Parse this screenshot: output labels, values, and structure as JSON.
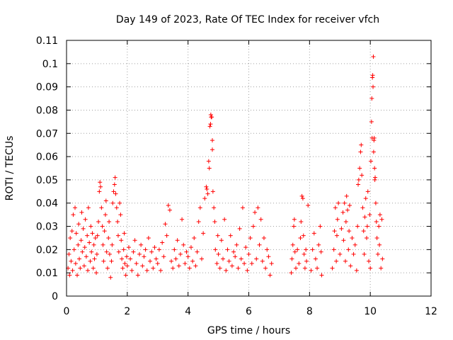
{
  "chart_data": {
    "type": "scatter",
    "title": "Day 149 of 2023, Rate Of TEC Index for receiver vfch",
    "xlabel": "GPS time / hours",
    "ylabel": "ROTI / TECUs",
    "xlim": [
      0,
      12
    ],
    "ylim": [
      0,
      0.11
    ],
    "xticks": [
      0,
      2,
      4,
      6,
      8,
      10,
      12
    ],
    "xtick_labels": [
      "0",
      "2",
      "4",
      "6",
      "8",
      "10",
      "12"
    ],
    "yticks": [
      0,
      0.01,
      0.02,
      0.03,
      0.04,
      0.05,
      0.06,
      0.07,
      0.08,
      0.09,
      0.1,
      0.11
    ],
    "ytick_labels": [
      "0",
      "0.01",
      "0.02",
      "0.03",
      "0.04",
      "0.05",
      "0.06",
      "0.07",
      "0.08",
      "0.09",
      "0.1",
      "0.11"
    ],
    "grid": true,
    "marker": "+",
    "color": "#ff0000",
    "series": [
      {
        "name": "ROTI",
        "points": [
          [
            0.05,
            0.012
          ],
          [
            0.08,
            0.018
          ],
          [
            0.1,
            0.009
          ],
          [
            0.12,
            0.025
          ],
          [
            0.15,
            0.015
          ],
          [
            0.18,
            0.028
          ],
          [
            0.2,
            0.011
          ],
          [
            0.22,
            0.035
          ],
          [
            0.25,
            0.02
          ],
          [
            0.28,
            0.038
          ],
          [
            0.3,
            0.014
          ],
          [
            0.32,
            0.027
          ],
          [
            0.35,
            0.009
          ],
          [
            0.38,
            0.022
          ],
          [
            0.4,
            0.031
          ],
          [
            0.42,
            0.016
          ],
          [
            0.45,
            0.012
          ],
          [
            0.48,
            0.024
          ],
          [
            0.5,
            0.036
          ],
          [
            0.52,
            0.019
          ],
          [
            0.55,
            0.029
          ],
          [
            0.58,
            0.013
          ],
          [
            0.6,
            0.021
          ],
          [
            0.62,
            0.033
          ],
          [
            0.65,
            0.017
          ],
          [
            0.68,
            0.026
          ],
          [
            0.7,
            0.011
          ],
          [
            0.72,
            0.038
          ],
          [
            0.75,
            0.023
          ],
          [
            0.78,
            0.015
          ],
          [
            0.8,
            0.03
          ],
          [
            0.82,
            0.019
          ],
          [
            0.85,
            0.027
          ],
          [
            0.88,
            0.012
          ],
          [
            0.9,
            0.022
          ],
          [
            0.92,
            0.016
          ],
          [
            0.95,
            0.025
          ],
          [
            0.98,
            0.01
          ],
          [
            1.0,
            0.018
          ],
          [
            1.02,
            0.026
          ],
          [
            1.05,
            0.032
          ],
          [
            1.08,
            0.045
          ],
          [
            1.1,
            0.049
          ],
          [
            1.12,
            0.047
          ],
          [
            1.15,
            0.038
          ],
          [
            1.18,
            0.03
          ],
          [
            1.2,
            0.022
          ],
          [
            1.22,
            0.015
          ],
          [
            1.25,
            0.028
          ],
          [
            1.28,
            0.035
          ],
          [
            1.3,
            0.041
          ],
          [
            1.32,
            0.019
          ],
          [
            1.35,
            0.012
          ],
          [
            1.38,
            0.025
          ],
          [
            1.4,
            0.032
          ],
          [
            1.42,
            0.018
          ],
          [
            1.45,
            0.008
          ],
          [
            1.48,
            0.015
          ],
          [
            1.5,
            0.022
          ],
          [
            1.52,
            0.04
          ],
          [
            1.55,
            0.045
          ],
          [
            1.58,
            0.048
          ],
          [
            1.6,
            0.051
          ],
          [
            1.62,
            0.044
          ],
          [
            1.65,
            0.038
          ],
          [
            1.68,
            0.032
          ],
          [
            1.7,
            0.026
          ],
          [
            1.72,
            0.019
          ],
          [
            1.75,
            0.04
          ],
          [
            1.78,
            0.035
          ],
          [
            1.8,
            0.024
          ],
          [
            1.82,
            0.016
          ],
          [
            1.85,
            0.012
          ],
          [
            1.88,
            0.02
          ],
          [
            1.9,
            0.027
          ],
          [
            1.92,
            0.014
          ],
          [
            1.95,
            0.009
          ],
          [
            1.98,
            0.017
          ],
          [
            2.0,
            0.013
          ],
          [
            2.05,
            0.021
          ],
          [
            2.1,
            0.016
          ],
          [
            2.15,
            0.011
          ],
          [
            2.2,
            0.019
          ],
          [
            2.25,
            0.024
          ],
          [
            2.3,
            0.014
          ],
          [
            2.35,
            0.009
          ],
          [
            2.4,
            0.018
          ],
          [
            2.45,
            0.022
          ],
          [
            2.5,
            0.013
          ],
          [
            2.55,
            0.017
          ],
          [
            2.6,
            0.02
          ],
          [
            2.65,
            0.011
          ],
          [
            2.7,
            0.025
          ],
          [
            2.75,
            0.015
          ],
          [
            2.8,
            0.019
          ],
          [
            2.85,
            0.012
          ],
          [
            2.9,
            0.021
          ],
          [
            2.95,
            0.016
          ],
          [
            3.0,
            0.014
          ],
          [
            3.05,
            0.02
          ],
          [
            3.1,
            0.011
          ],
          [
            3.15,
            0.023
          ],
          [
            3.2,
            0.017
          ],
          [
            3.25,
            0.031
          ],
          [
            3.3,
            0.026
          ],
          [
            3.35,
            0.039
          ],
          [
            3.4,
            0.037
          ],
          [
            3.45,
            0.015
          ],
          [
            3.5,
            0.012
          ],
          [
            3.55,
            0.02
          ],
          [
            3.6,
            0.016
          ],
          [
            3.65,
            0.024
          ],
          [
            3.7,
            0.013
          ],
          [
            3.75,
            0.018
          ],
          [
            3.8,
            0.033
          ],
          [
            3.85,
            0.022
          ],
          [
            3.9,
            0.014
          ],
          [
            3.95,
            0.019
          ],
          [
            4.0,
            0.017
          ],
          [
            4.05,
            0.012
          ],
          [
            4.1,
            0.021
          ],
          [
            4.15,
            0.015
          ],
          [
            4.2,
            0.025
          ],
          [
            4.25,
            0.013
          ],
          [
            4.3,
            0.019
          ],
          [
            4.35,
            0.032
          ],
          [
            4.4,
            0.038
          ],
          [
            4.45,
            0.016
          ],
          [
            4.5,
            0.027
          ],
          [
            4.55,
            0.042
          ],
          [
            4.6,
            0.047
          ],
          [
            4.62,
            0.046
          ],
          [
            4.65,
            0.044
          ],
          [
            4.68,
            0.058
          ],
          [
            4.7,
            0.055
          ],
          [
            4.72,
            0.073
          ],
          [
            4.74,
            0.074
          ],
          [
            4.75,
            0.078
          ],
          [
            4.76,
            0.077
          ],
          [
            4.78,
            0.077
          ],
          [
            4.8,
            0.067
          ],
          [
            4.8,
            0.063
          ],
          [
            4.82,
            0.045
          ],
          [
            4.85,
            0.038
          ],
          [
            4.88,
            0.032
          ],
          [
            4.9,
            0.02
          ],
          [
            4.95,
            0.014
          ],
          [
            4.98,
            0.026
          ],
          [
            5.0,
            0.018
          ],
          [
            5.05,
            0.012
          ],
          [
            5.1,
            0.024
          ],
          [
            5.15,
            0.016
          ],
          [
            5.2,
            0.033
          ],
          [
            5.25,
            0.011
          ],
          [
            5.3,
            0.02
          ],
          [
            5.35,
            0.015
          ],
          [
            5.4,
            0.026
          ],
          [
            5.45,
            0.013
          ],
          [
            5.5,
            0.019
          ],
          [
            5.55,
            0.017
          ],
          [
            5.6,
            0.022
          ],
          [
            5.65,
            0.012
          ],
          [
            5.7,
            0.029
          ],
          [
            5.75,
            0.016
          ],
          [
            5.8,
            0.038
          ],
          [
            5.85,
            0.014
          ],
          [
            5.9,
            0.021
          ],
          [
            5.95,
            0.011
          ],
          [
            6.0,
            0.018
          ],
          [
            6.05,
            0.025
          ],
          [
            6.1,
            0.014
          ],
          [
            6.15,
            0.03
          ],
          [
            6.2,
            0.036
          ],
          [
            6.25,
            0.016
          ],
          [
            6.3,
            0.038
          ],
          [
            6.35,
            0.022
          ],
          [
            6.4,
            0.033
          ],
          [
            6.45,
            0.015
          ],
          [
            6.5,
            0.025
          ],
          [
            6.55,
            0.012
          ],
          [
            6.6,
            0.02
          ],
          [
            6.65,
            0.017
          ],
          [
            6.7,
            0.009
          ],
          [
            6.75,
            0.014
          ],
          [
            7.4,
            0.01
          ],
          [
            7.42,
            0.016
          ],
          [
            7.45,
            0.022
          ],
          [
            7.48,
            0.03
          ],
          [
            7.5,
            0.033
          ],
          [
            7.52,
            0.019
          ],
          [
            7.55,
            0.012
          ],
          [
            7.6,
            0.02
          ],
          [
            7.65,
            0.014
          ],
          [
            7.7,
            0.025
          ],
          [
            7.72,
            0.032
          ],
          [
            7.75,
            0.043
          ],
          [
            7.78,
            0.042
          ],
          [
            7.8,
            0.026
          ],
          [
            7.82,
            0.018
          ],
          [
            7.85,
            0.012
          ],
          [
            7.88,
            0.02
          ],
          [
            7.9,
            0.015
          ],
          [
            7.95,
            0.039
          ],
          [
            8.05,
            0.011
          ],
          [
            8.1,
            0.02
          ],
          [
            8.15,
            0.027
          ],
          [
            8.2,
            0.016
          ],
          [
            8.25,
            0.012
          ],
          [
            8.3,
            0.022
          ],
          [
            8.35,
            0.03
          ],
          [
            8.38,
            0.019
          ],
          [
            8.4,
            0.009
          ],
          [
            8.75,
            0.012
          ],
          [
            8.8,
            0.02
          ],
          [
            8.82,
            0.028
          ],
          [
            8.85,
            0.038
          ],
          [
            8.88,
            0.015
          ],
          [
            8.9,
            0.026
          ],
          [
            8.92,
            0.033
          ],
          [
            8.95,
            0.04
          ],
          [
            9.0,
            0.018
          ],
          [
            9.05,
            0.029
          ],
          [
            9.1,
            0.036
          ],
          [
            9.12,
            0.024
          ],
          [
            9.15,
            0.04
          ],
          [
            9.18,
            0.015
          ],
          [
            9.2,
            0.032
          ],
          [
            9.22,
            0.043
          ],
          [
            9.25,
            0.037
          ],
          [
            9.28,
            0.02
          ],
          [
            9.3,
            0.028
          ],
          [
            9.32,
            0.039
          ],
          [
            9.35,
            0.013
          ],
          [
            9.4,
            0.025
          ],
          [
            9.45,
            0.018
          ],
          [
            9.5,
            0.022
          ],
          [
            9.55,
            0.011
          ],
          [
            9.58,
            0.03
          ],
          [
            9.6,
            0.048
          ],
          [
            9.62,
            0.05
          ],
          [
            9.65,
            0.055
          ],
          [
            9.68,
            0.062
          ],
          [
            9.7,
            0.065
          ],
          [
            9.72,
            0.052
          ],
          [
            9.75,
            0.038
          ],
          [
            9.78,
            0.028
          ],
          [
            9.8,
            0.018
          ],
          [
            9.82,
            0.034
          ],
          [
            9.85,
            0.042
          ],
          [
            9.88,
            0.025
          ],
          [
            9.9,
            0.03
          ],
          [
            9.92,
            0.045
          ],
          [
            9.95,
            0.015
          ],
          [
            9.98,
            0.035
          ],
          [
            10.0,
            0.012
          ],
          [
            10.02,
            0.058
          ],
          [
            10.04,
            0.075
          ],
          [
            10.05,
            0.085
          ],
          [
            10.06,
            0.068
          ],
          [
            10.07,
            0.094
          ],
          [
            10.08,
            0.095
          ],
          [
            10.09,
            0.09
          ],
          [
            10.1,
            0.103
          ],
          [
            10.11,
            0.062
          ],
          [
            10.12,
            0.067
          ],
          [
            10.13,
            0.068
          ],
          [
            10.14,
            0.055
          ],
          [
            10.15,
            0.05
          ],
          [
            10.16,
            0.051
          ],
          [
            10.18,
            0.04
          ],
          [
            10.2,
            0.032
          ],
          [
            10.22,
            0.025
          ],
          [
            10.25,
            0.018
          ],
          [
            10.28,
            0.03
          ],
          [
            10.3,
            0.022
          ],
          [
            10.32,
            0.035
          ],
          [
            10.35,
            0.012
          ],
          [
            10.38,
            0.033
          ],
          [
            10.4,
            0.016
          ]
        ]
      }
    ]
  }
}
